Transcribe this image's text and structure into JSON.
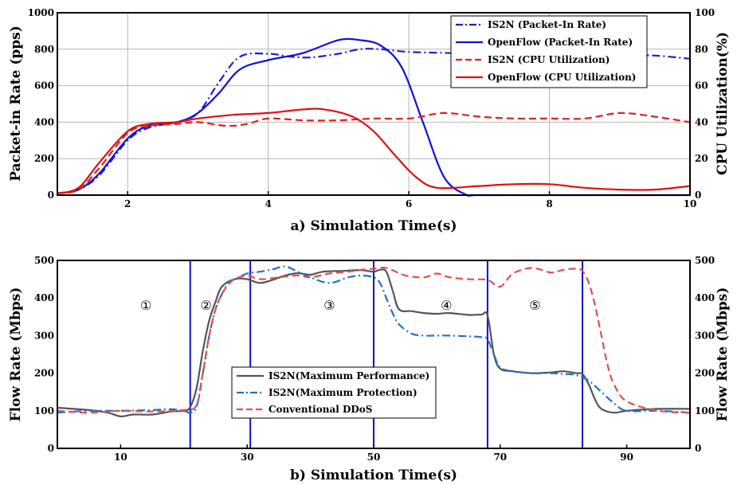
{
  "chart_data": [
    {
      "type": "line",
      "title": "",
      "xlabel": "a) Simulation Time(s)",
      "ylabel": "Packet-in Rate (pps)",
      "y2label": "CPU Utilization(%)",
      "xlim": [
        1,
        10
      ],
      "ylim": [
        0,
        1000
      ],
      "y2lim": [
        0,
        100
      ],
      "xticks": [
        2,
        4,
        6,
        8,
        10
      ],
      "yticks": [
        0,
        200,
        400,
        600,
        800,
        1000
      ],
      "y2ticks": [
        0,
        20,
        40,
        60,
        80,
        100
      ],
      "grid": true,
      "legend_position": "top-right",
      "series": [
        {
          "name": "IS2N (Packet-In Rate)",
          "axis": "left",
          "color": "#1f1fd0",
          "style": "dashdot",
          "x": [
            1,
            1.3,
            1.6,
            2,
            2.3,
            2.7,
            3,
            3.3,
            3.6,
            4,
            4.3,
            4.6,
            5,
            5.3,
            5.6,
            6,
            6.5,
            7,
            7.5,
            8,
            8.5,
            9,
            9.5,
            10
          ],
          "y": [
            10,
            30,
            110,
            300,
            370,
            400,
            450,
            620,
            760,
            775,
            760,
            755,
            775,
            800,
            800,
            785,
            780,
            775,
            775,
            775,
            770,
            768,
            765,
            748
          ]
        },
        {
          "name": "OpenFlow (Packet-In Rate)",
          "axis": "left",
          "color": "#1010e0",
          "style": "solid",
          "x": [
            1,
            1.3,
            1.6,
            2,
            2.3,
            2.7,
            3,
            3.3,
            3.6,
            4,
            4.5,
            5,
            5.3,
            5.6,
            5.9,
            6.2,
            6.5,
            6.8,
            7,
            8,
            9,
            10
          ],
          "y": [
            10,
            30,
            120,
            310,
            380,
            400,
            450,
            560,
            690,
            740,
            780,
            850,
            850,
            820,
            700,
            400,
            100,
            5,
            0,
            0,
            0,
            0
          ]
        },
        {
          "name": "IS2N (CPU Utilization)",
          "axis": "right",
          "color": "#e02020",
          "style": "dashed",
          "x": [
            1,
            1.3,
            1.6,
            2,
            2.3,
            2.7,
            3,
            3.4,
            3.7,
            4,
            4.5,
            5,
            5.5,
            6,
            6.5,
            7,
            7.5,
            8,
            8.5,
            9,
            9.5,
            10
          ],
          "y": [
            1,
            3,
            15,
            34,
            38,
            39,
            40,
            38,
            39,
            42,
            41,
            41,
            42,
            42,
            45,
            43,
            42,
            42,
            42,
            45,
            43,
            40
          ]
        },
        {
          "name": "OpenFlow (CPU Utilization)",
          "axis": "right",
          "color": "#e01010",
          "style": "solid",
          "x": [
            1,
            1.3,
            1.6,
            2,
            2.3,
            2.7,
            3,
            3.5,
            4,
            4.5,
            4.8,
            5.2,
            5.5,
            5.8,
            6.1,
            6.4,
            7,
            7.5,
            8,
            8.5,
            9,
            9.5,
            10
          ],
          "y": [
            1,
            4,
            18,
            35,
            39,
            40,
            42,
            44,
            45,
            47,
            47,
            43,
            35,
            22,
            10,
            4,
            5,
            6,
            6,
            4,
            3,
            3,
            5
          ]
        }
      ]
    },
    {
      "type": "line",
      "title": "",
      "xlabel": "b) Simulation Time(s)",
      "ylabel": "Flow Rate (Mbps)",
      "y2label": "Flow Rate (Mbps)",
      "xlim": [
        0,
        100
      ],
      "ylim": [
        0,
        500
      ],
      "y2lim": [
        0,
        500
      ],
      "xticks": [
        10,
        30,
        50,
        70,
        90
      ],
      "yticks": [
        0,
        100,
        200,
        300,
        400,
        500
      ],
      "y2ticks": [
        0,
        100,
        200,
        300,
        400,
        500
      ],
      "grid": false,
      "legend_position": "bottom-center",
      "phase_lines_x": [
        21,
        30.5,
        50,
        68,
        83
      ],
      "phase_labels": [
        {
          "text": "①",
          "x": 14
        },
        {
          "text": "②",
          "x": 23.5
        },
        {
          "text": "③",
          "x": 43
        },
        {
          "text": "④",
          "x": 61.5
        },
        {
          "text": "⑤",
          "x": 75.5
        }
      ],
      "series": [
        {
          "name": "IS2N(Maximum Performance)",
          "color": "#555555",
          "style": "solid",
          "x": [
            0,
            5,
            8,
            10,
            12,
            15,
            18,
            20,
            21,
            22,
            23,
            24,
            25,
            26,
            28,
            30,
            32,
            34,
            36,
            38,
            40,
            42,
            45,
            48,
            50,
            51,
            52,
            53,
            54,
            56,
            58,
            60,
            62,
            65,
            67,
            68,
            69,
            70,
            72,
            75,
            78,
            80,
            82,
            83,
            84,
            85,
            86,
            88,
            90,
            95,
            100
          ],
          "y": [
            108,
            102,
            95,
            85,
            90,
            90,
            98,
            100,
            110,
            160,
            260,
            340,
            390,
            430,
            450,
            450,
            440,
            448,
            460,
            466,
            462,
            470,
            472,
            474,
            470,
            475,
            470,
            420,
            370,
            365,
            360,
            358,
            360,
            355,
            356,
            354,
            250,
            212,
            205,
            200,
            202,
            205,
            200,
            198,
            170,
            130,
            105,
            95,
            100,
            105,
            105
          ]
        },
        {
          "name": "IS2N(Maximum Protection)",
          "color": "#2070d0",
          "style": "dashdot",
          "x": [
            0,
            5,
            10,
            15,
            18,
            20,
            21,
            22,
            23,
            24,
            25,
            26,
            27,
            28,
            30,
            32,
            34,
            36,
            38,
            40,
            43,
            46,
            48,
            50,
            51,
            52,
            53,
            54,
            56,
            58,
            60,
            62,
            65,
            67,
            68,
            69,
            70,
            72,
            75,
            78,
            80,
            82,
            84,
            86,
            88,
            90,
            95,
            100
          ],
          "y": [
            95,
            100,
            100,
            102,
            104,
            100,
            95,
            110,
            200,
            300,
            370,
            410,
            440,
            450,
            465,
            470,
            476,
            484,
            470,
            455,
            440,
            455,
            460,
            455,
            440,
            400,
            360,
            330,
            305,
            300,
            300,
            300,
            298,
            296,
            290,
            250,
            215,
            205,
            200,
            200,
            198,
            195,
            180,
            150,
            120,
            100,
            100,
            95
          ]
        },
        {
          "name": "Conventional DDoS",
          "color": "#e05050",
          "style": "dashed",
          "x": [
            0,
            5,
            10,
            15,
            20,
            22,
            23,
            24,
            25,
            26,
            27,
            28,
            30,
            32,
            35,
            38,
            40,
            43,
            46,
            48,
            50,
            52,
            55,
            58,
            60,
            62,
            65,
            68,
            70,
            72,
            75,
            78,
            80,
            82,
            83,
            84,
            85,
            86,
            87,
            88,
            90,
            95,
            100
          ],
          "y": [
            100,
            95,
            100,
            98,
            102,
            115,
            200,
            300,
            370,
            410,
            435,
            450,
            460,
            450,
            455,
            460,
            455,
            465,
            470,
            475,
            478,
            480,
            460,
            455,
            465,
            455,
            450,
            448,
            430,
            465,
            480,
            468,
            475,
            478,
            472,
            440,
            380,
            300,
            220,
            170,
            125,
            100,
            95
          ]
        }
      ]
    }
  ]
}
